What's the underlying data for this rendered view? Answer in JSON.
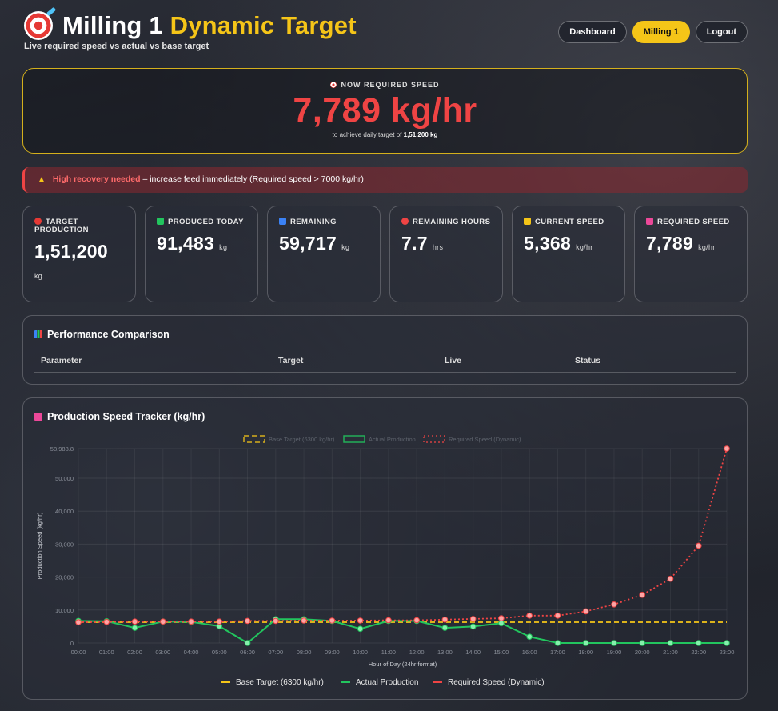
{
  "header": {
    "title_main": "Milling 1",
    "title_accent": "Dynamic Target",
    "subtitle": "Live required speed vs actual vs base target",
    "icon": "dart-target-icon"
  },
  "nav": {
    "dashboard": "Dashboard",
    "milling1": "Milling 1",
    "logout": "Logout"
  },
  "hero": {
    "label": "NOW REQUIRED SPEED",
    "value": "7,789 kg/hr",
    "sub_prefix": "to achieve daily target of",
    "sub_value": "1,51,200 kg"
  },
  "alert": {
    "highlight": "High recovery needed",
    "message": "– increase feed immediately (Required speed > 7000 kg/hr)"
  },
  "cards": [
    {
      "label": "TARGET PRODUCTION",
      "value": "1,51,200",
      "unit": "kg",
      "icon_color": "#e53935"
    },
    {
      "label": "PRODUCED TODAY",
      "value": "91,483",
      "unit": "kg",
      "icon_color": "#22c55e"
    },
    {
      "label": "REMAINING",
      "value": "59,717",
      "unit": "kg",
      "icon_color": "#3b82f6"
    },
    {
      "label": "REMAINING HOURS",
      "value": "7.7",
      "unit": "hrs",
      "icon_color": "#ef4444"
    },
    {
      "label": "CURRENT SPEED",
      "value": "5,368",
      "unit": "kg/hr",
      "icon_color": "#f5c518"
    },
    {
      "label": "REQUIRED SPEED",
      "value": "7,789",
      "unit": "kg/hr",
      "icon_color": "#ec4899"
    }
  ],
  "performance": {
    "title": "Performance Comparison",
    "columns": [
      "Parameter",
      "Target",
      "Live",
      "Status"
    ]
  },
  "chart_section_title": "Production Speed Tracker (kg/hr)",
  "colors": {
    "accent": "#f5c518",
    "danger": "#ef4444",
    "actual": "#22c55e"
  },
  "chart_data": {
    "type": "line",
    "x": [
      "00:00",
      "01:00",
      "02:00",
      "03:00",
      "04:00",
      "05:00",
      "06:00",
      "07:00",
      "08:00",
      "09:00",
      "10:00",
      "11:00",
      "12:00",
      "13:00",
      "14:00",
      "15:00",
      "16:00",
      "17:00",
      "18:00",
      "19:00",
      "20:00",
      "21:00",
      "22:00",
      "23:00"
    ],
    "series": [
      {
        "name": "Base Target (6300 kg/hr)",
        "style": "dashed",
        "color": "#f5c518",
        "values": [
          6300,
          6300,
          6300,
          6300,
          6300,
          6300,
          6300,
          6300,
          6300,
          6300,
          6300,
          6300,
          6300,
          6300,
          6300,
          6300,
          6300,
          6300,
          6300,
          6300,
          6300,
          6300,
          6300,
          6300
        ]
      },
      {
        "name": "Actual Production",
        "style": "solid",
        "color": "#22c55e",
        "values": [
          6700,
          6600,
          4600,
          6500,
          6400,
          5100,
          0,
          7200,
          7200,
          6700,
          4300,
          6700,
          6700,
          4600,
          5000,
          6000,
          1900,
          0,
          0,
          0,
          0,
          0,
          0,
          0
        ]
      },
      {
        "name": "Required Speed (Dynamic)",
        "style": "dotted",
        "color": "#ef4444",
        "values": [
          6300,
          6400,
          6500,
          6500,
          6500,
          6500,
          6700,
          6700,
          6800,
          6800,
          6800,
          6900,
          6900,
          7100,
          7300,
          7500,
          8300,
          8300,
          9600,
          11700,
          14600,
          19500,
          29500,
          58988.8
        ]
      }
    ],
    "ylabel": "Production Speed (kg/hr)",
    "xlabel": "Hour of Day (24hr format)",
    "yticks": [
      "58,988.8",
      "50,000",
      "40,000",
      "30,000",
      "20,000",
      "10,000",
      "0"
    ],
    "ylim": [
      0,
      58988.8
    ],
    "grid": true,
    "legend_placement": "top and bottom"
  }
}
